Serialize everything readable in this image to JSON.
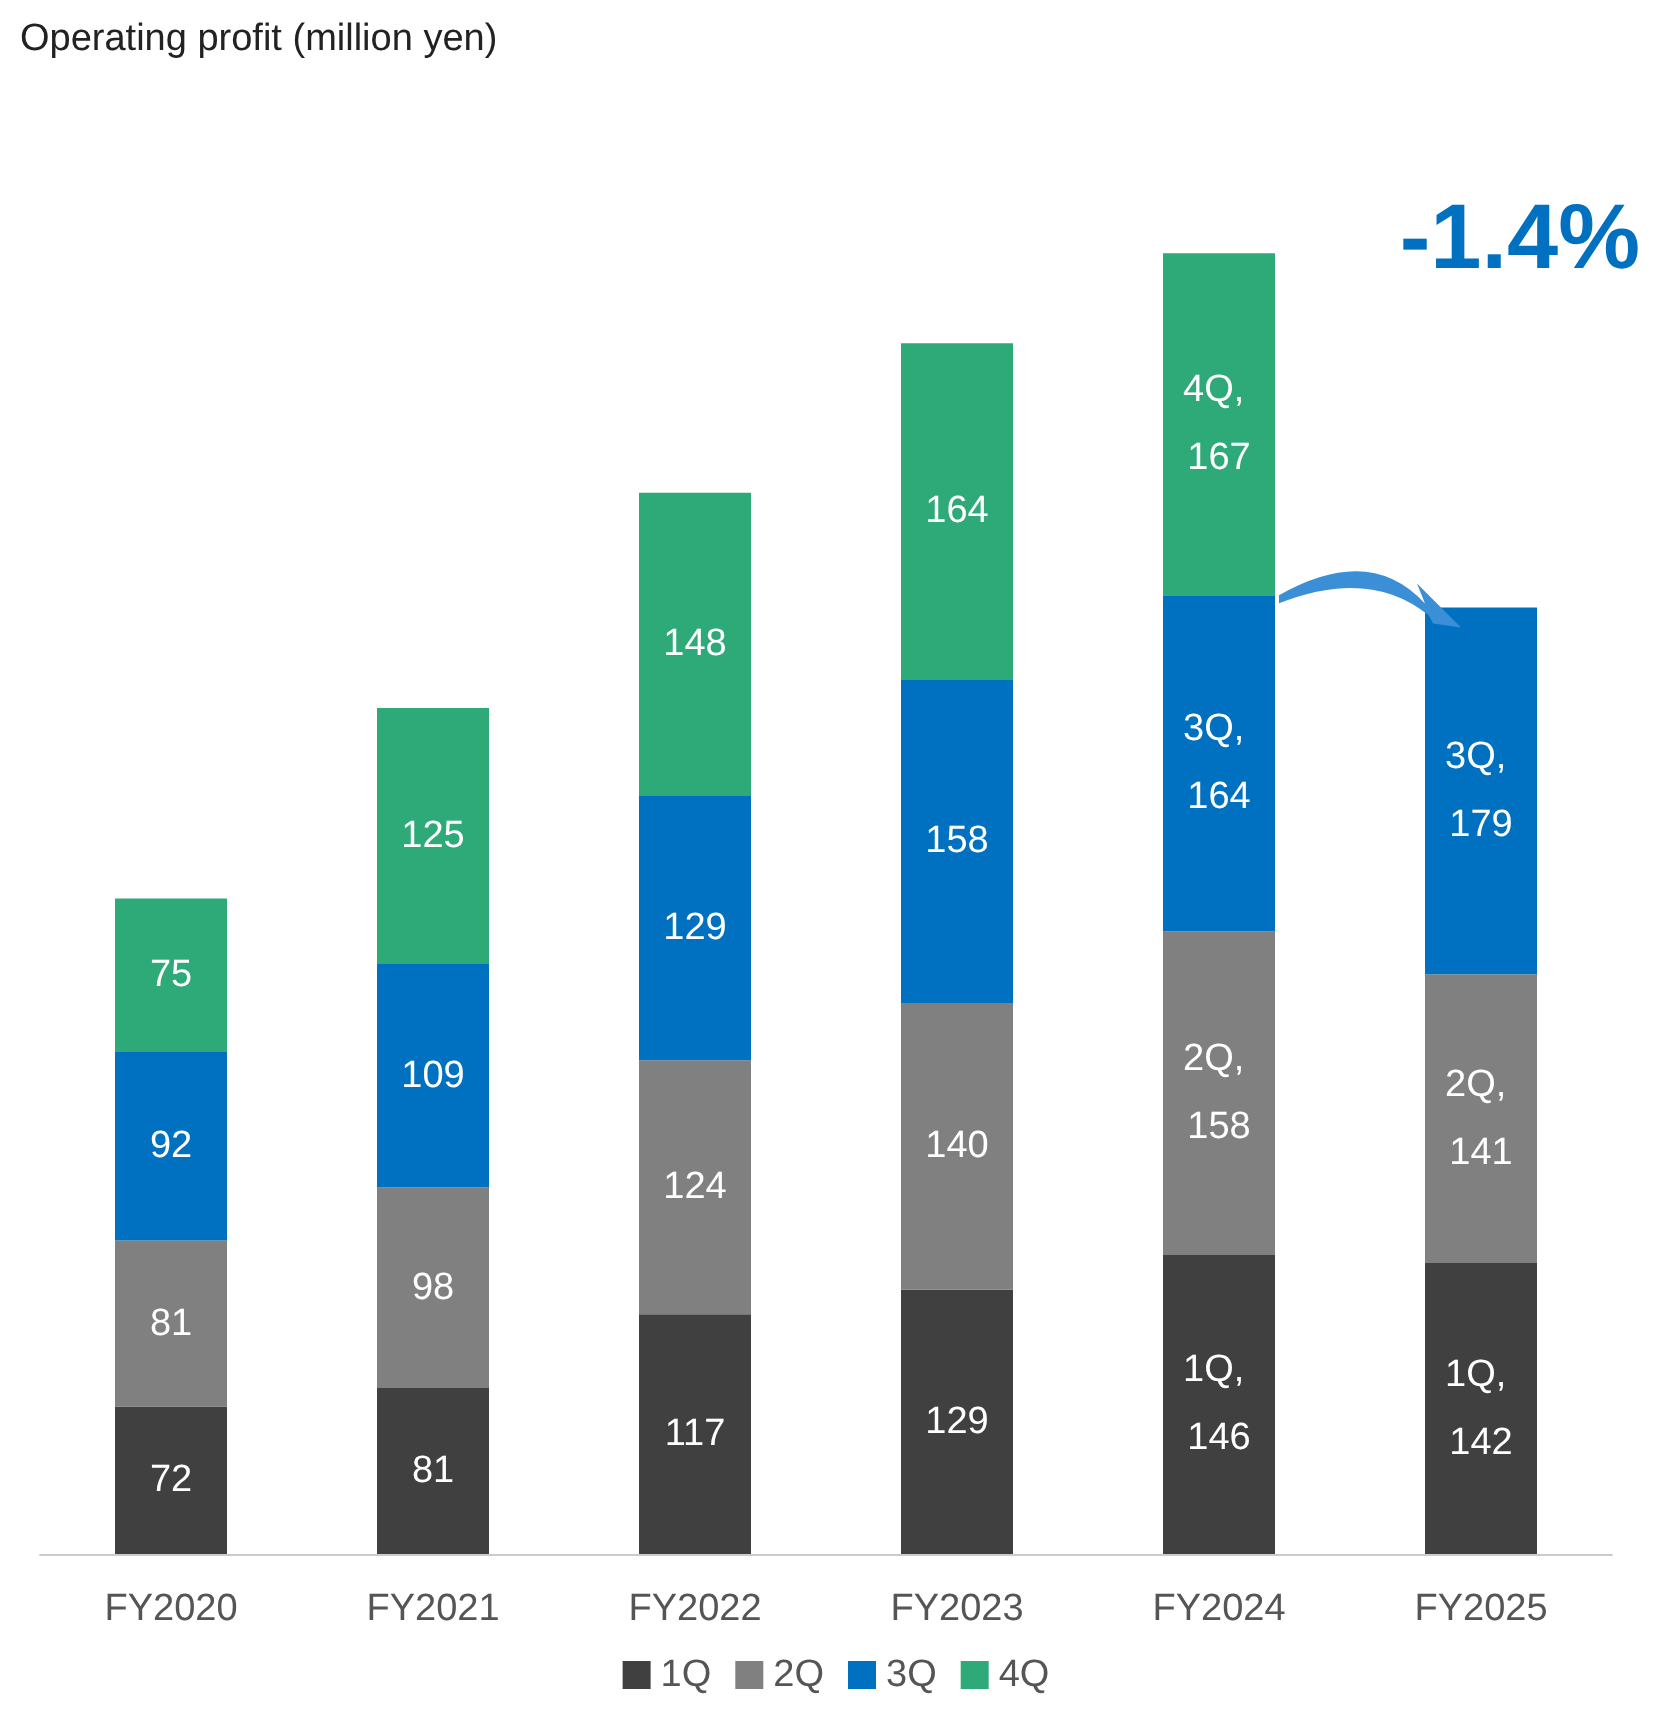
{
  "chart_data": {
    "type": "bar",
    "title": "Operating profit (million yen)",
    "stacked": true,
    "categories": [
      "FY2020",
      "FY2021",
      "FY2022",
      "FY2023",
      "FY2024",
      "FY2025"
    ],
    "series": [
      {
        "name": "1Q",
        "color": "#404040",
        "values": [
          72,
          81,
          117,
          129,
          146,
          142
        ],
        "value_labels": [
          "72",
          "81",
          "117",
          "129",
          "1Q, 146",
          "1Q, 142"
        ]
      },
      {
        "name": "2Q",
        "color": "#808080",
        "values": [
          81,
          98,
          124,
          140,
          158,
          141
        ],
        "value_labels": [
          "81",
          "98",
          "124",
          "140",
          "2Q, 158",
          "2Q, 141"
        ]
      },
      {
        "name": "3Q",
        "color": "#0070c0",
        "values": [
          92,
          109,
          129,
          158,
          164,
          179
        ],
        "value_labels": [
          "92",
          "109",
          "129",
          "158",
          "3Q, 164",
          "3Q, 179"
        ]
      },
      {
        "name": "4Q",
        "color": "#2eaa78",
        "values": [
          75,
          125,
          148,
          164,
          167,
          null
        ],
        "value_labels": [
          "75",
          "125",
          "148",
          "164",
          "4Q, 167",
          null
        ]
      }
    ],
    "annotations": [
      "-1.4%"
    ],
    "legend": "bottom",
    "grid": false
  }
}
